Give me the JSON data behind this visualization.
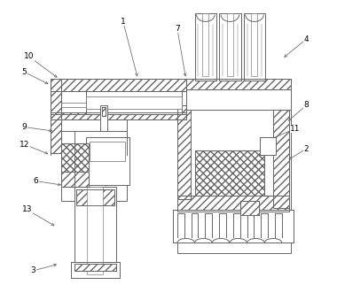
{
  "background_color": "#ffffff",
  "line_color": "#666666",
  "figsize": [
    3.8,
    3.48
  ],
  "dpi": 100,
  "labels_data": {
    "1": [
      138,
      22,
      155,
      88
    ],
    "7": [
      200,
      30,
      210,
      88
    ],
    "10": [
      30,
      62,
      65,
      88
    ],
    "5": [
      25,
      80,
      55,
      95
    ],
    "9": [
      25,
      143,
      60,
      148
    ],
    "12": [
      25,
      163,
      55,
      175
    ],
    "6": [
      38,
      205,
      70,
      210
    ],
    "13": [
      28,
      238,
      62,
      258
    ],
    "3": [
      35,
      308,
      65,
      300
    ],
    "4": [
      348,
      42,
      320,
      65
    ],
    "8": [
      348,
      118,
      325,
      138
    ],
    "11": [
      335,
      145,
      295,
      162
    ],
    "2": [
      348,
      168,
      325,
      182
    ]
  }
}
